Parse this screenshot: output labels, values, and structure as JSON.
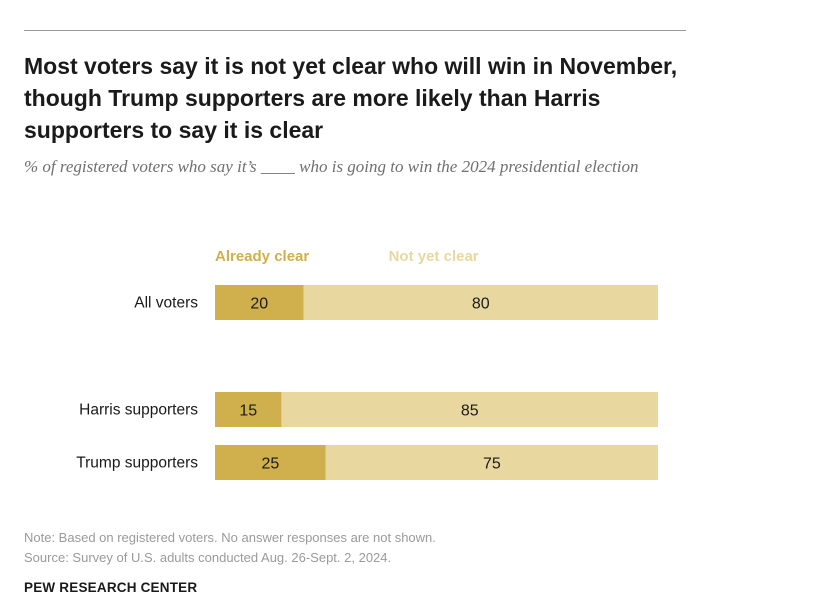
{
  "header": {
    "title": "Most voters say it is not yet clear who will win in November, though Trump supporters are more likely than Harris supporters to say it is clear",
    "subtitle": "% of registered voters who say it’s ____ who is going to win the 2024 presidential election"
  },
  "footer": {
    "note": "Note: Based on registered voters. No answer responses are not shown.",
    "source": "Source: Survey of U.S. adults conducted Aug. 26-Sept. 2, 2024.",
    "brand": "PEW RESEARCH CENTER"
  },
  "colors": {
    "already_clear": "#cfb04c",
    "not_yet_clear": "#e8d8a0",
    "already_clear_label": "#cfb04c",
    "not_yet_clear_label": "#e8d8a0",
    "bar_text": "#1a1a1a"
  },
  "chart_data": {
    "type": "bar",
    "orientation": "horizontal",
    "stacked": true,
    "categories": [
      "All voters",
      "Harris supporters",
      "Trump supporters"
    ],
    "series": [
      {
        "name": "Already clear",
        "values": [
          20,
          15,
          25
        ]
      },
      {
        "name": "Not yet clear",
        "values": [
          80,
          85,
          75
        ]
      }
    ],
    "xlim": [
      0,
      100
    ],
    "grid": false,
    "legend": "top"
  }
}
